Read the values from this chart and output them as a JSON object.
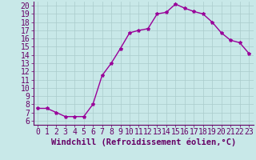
{
  "x": [
    0,
    1,
    2,
    3,
    4,
    5,
    6,
    7,
    8,
    9,
    10,
    11,
    12,
    13,
    14,
    15,
    16,
    17,
    18,
    19,
    20,
    21,
    22,
    23
  ],
  "y": [
    7.5,
    7.5,
    7.0,
    6.5,
    6.5,
    6.5,
    8.0,
    11.5,
    13.0,
    14.8,
    16.7,
    17.0,
    17.2,
    19.0,
    19.2,
    20.2,
    19.7,
    19.3,
    19.0,
    18.0,
    16.7,
    15.8,
    15.5,
    14.2
  ],
  "line_color": "#990099",
  "marker": "*",
  "marker_size": 3,
  "bg_color": "#c8e8e8",
  "grid_color": "#aacccc",
  "xlabel": "Windchill (Refroidissement éolien,°C)",
  "xlabel_fontsize": 7.5,
  "tick_fontsize": 7,
  "xlim": [
    -0.5,
    23.5
  ],
  "ylim": [
    5.5,
    20.5
  ],
  "yticks": [
    6,
    7,
    8,
    9,
    10,
    11,
    12,
    13,
    14,
    15,
    16,
    17,
    18,
    19,
    20
  ],
  "xticks": [
    0,
    1,
    2,
    3,
    4,
    5,
    6,
    7,
    8,
    9,
    10,
    11,
    12,
    13,
    14,
    15,
    16,
    17,
    18,
    19,
    20,
    21,
    22,
    23
  ],
  "spine_color": "#660066",
  "tick_color": "#660066",
  "label_color": "#660066"
}
